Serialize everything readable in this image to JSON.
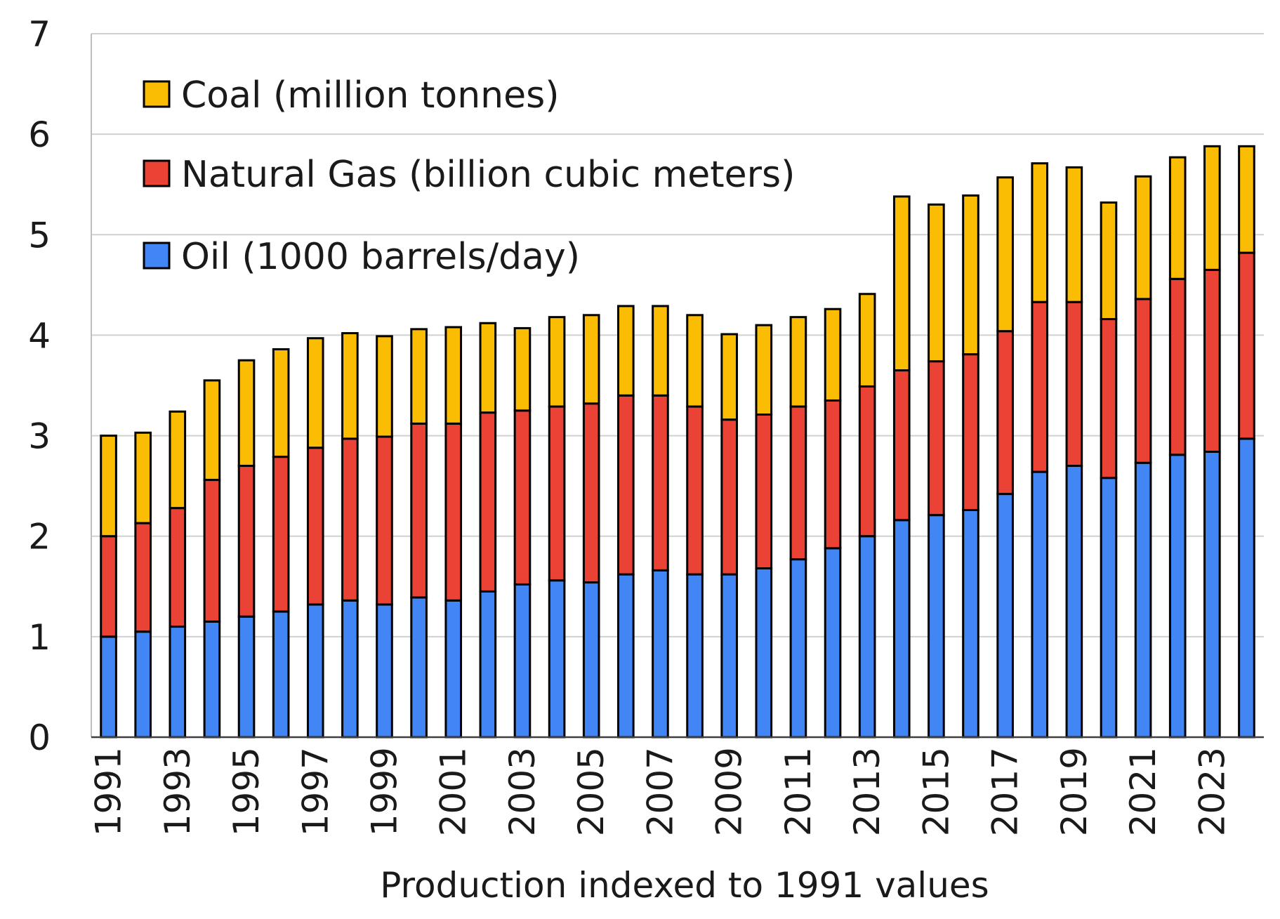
{
  "chart_data": {
    "type": "bar",
    "stacked": true,
    "title": "",
    "xlabel": "Production indexed to 1991 values",
    "ylabel": "",
    "ylim": [
      0,
      7
    ],
    "yticks": [
      0,
      1,
      2,
      3,
      4,
      5,
      6,
      7
    ],
    "grid": "horizontal",
    "legend_position": "top-left",
    "categories": [
      "1991",
      "1992",
      "1993",
      "1994",
      "1995",
      "1996",
      "1997",
      "1998",
      "1999",
      "2000",
      "2001",
      "2002",
      "2003",
      "2004",
      "2005",
      "2006",
      "2007",
      "2008",
      "2009",
      "2010",
      "2011",
      "2012",
      "2013",
      "2014",
      "2015",
      "2016",
      "2017",
      "2018",
      "2019",
      "2020",
      "2021",
      "2022",
      "2023",
      "2024"
    ],
    "category_labels_shown": [
      "1991",
      "",
      "1993",
      "",
      "1995",
      "",
      "1997",
      "",
      "1999",
      "",
      "2001",
      "",
      "2003",
      "",
      "2005",
      "",
      "2007",
      "",
      "2009",
      "",
      "2011",
      "",
      "2013",
      "",
      "2015",
      "",
      "2017",
      "",
      "2019",
      "",
      "2021",
      "",
      "2023",
      ""
    ],
    "series": [
      {
        "name": "Oil (1000 barrels/day)",
        "color": "#4285f4",
        "values": [
          1.0,
          1.05,
          1.1,
          1.15,
          1.2,
          1.25,
          1.32,
          1.36,
          1.32,
          1.39,
          1.36,
          1.45,
          1.52,
          1.56,
          1.54,
          1.62,
          1.66,
          1.62,
          1.62,
          1.68,
          1.77,
          1.88,
          2.0,
          2.16,
          2.21,
          2.26,
          2.42,
          2.64,
          2.7,
          2.58,
          2.73,
          2.81,
          2.84,
          2.97
        ]
      },
      {
        "name": "Natural Gas (billion cubic meters)",
        "color": "#ea4335",
        "values": [
          1.0,
          1.08,
          1.18,
          1.41,
          1.5,
          1.54,
          1.56,
          1.61,
          1.67,
          1.73,
          1.76,
          1.78,
          1.73,
          1.73,
          1.78,
          1.78,
          1.74,
          1.67,
          1.54,
          1.53,
          1.52,
          1.47,
          1.49,
          1.49,
          1.53,
          1.55,
          1.62,
          1.69,
          1.63,
          1.58,
          1.63,
          1.75,
          1.81,
          1.85
        ]
      },
      {
        "name": "Coal (million tonnes)",
        "color": "#fbbc04",
        "values": [
          1.0,
          0.9,
          0.96,
          0.99,
          1.05,
          1.07,
          1.09,
          1.05,
          1.0,
          0.94,
          0.96,
          0.89,
          0.82,
          0.89,
          0.88,
          0.89,
          0.89,
          0.91,
          0.85,
          0.89,
          0.89,
          0.91,
          0.92,
          1.73,
          1.56,
          1.58,
          1.53,
          1.38,
          1.34,
          1.16,
          1.22,
          1.21,
          1.23,
          1.06
        ]
      }
    ],
    "legend_order": [
      "Coal (million tonnes)",
      "Natural Gas (billion cubic meters)",
      "Oil (1000 barrels/day)"
    ]
  }
}
